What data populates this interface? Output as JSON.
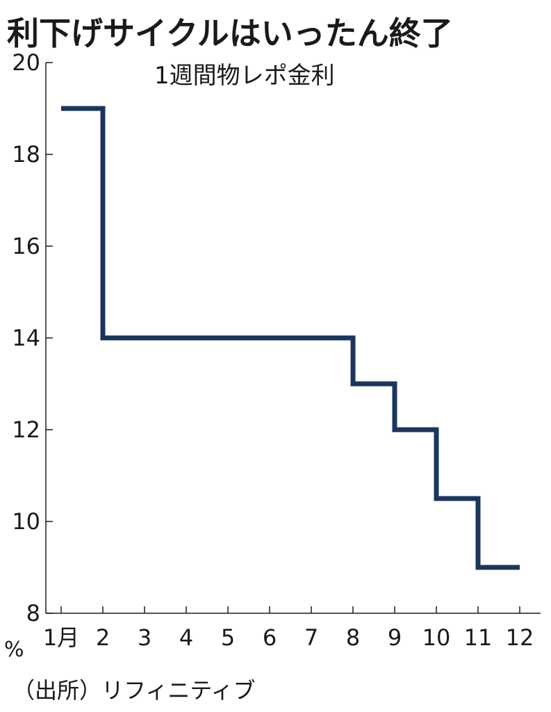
{
  "chart_data": {
    "type": "line",
    "step": true,
    "title": "利下げサイクルはいったん終了",
    "subtitle": "1週間物レポ金利",
    "y_unit": "%",
    "source": "（出所）リフィニティブ",
    "x_tick_labels": [
      "1月",
      "2",
      "3",
      "4",
      "5",
      "6",
      "7",
      "8",
      "9",
      "10",
      "11",
      "12"
    ],
    "y_ticks": [
      8,
      10,
      12,
      14,
      16,
      18,
      20
    ],
    "ylim": [
      8,
      20
    ],
    "xlim": [
      1,
      12
    ],
    "grid": false,
    "series": [
      {
        "color": "#1b365d",
        "points": [
          [
            1,
            19
          ],
          [
            2,
            19
          ],
          [
            2,
            14
          ],
          [
            8,
            14
          ],
          [
            8,
            13
          ],
          [
            9,
            13
          ],
          [
            9,
            12
          ],
          [
            10,
            12
          ],
          [
            10,
            10.5
          ],
          [
            11,
            10.5
          ],
          [
            11,
            9
          ],
          [
            12,
            9
          ]
        ]
      }
    ]
  }
}
